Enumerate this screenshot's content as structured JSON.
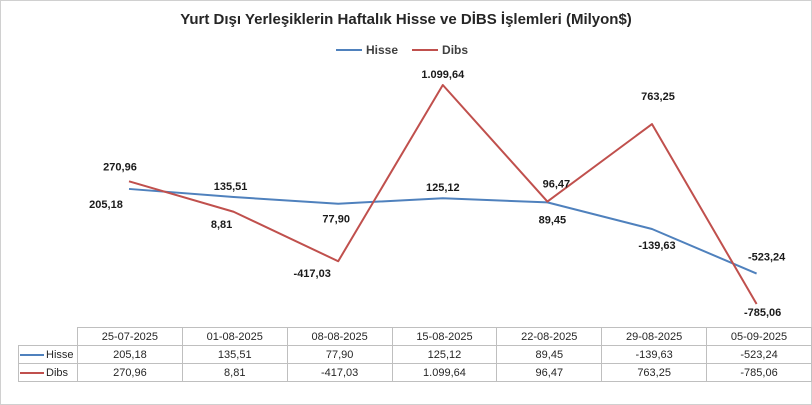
{
  "chart_data": {
    "type": "line",
    "title": "Yurt Dışı Yerleşiklerin Haftalık Hisse ve DİBS İşlemleri (Milyon$)",
    "categories": [
      "25-07-2025",
      "01-08-2025",
      "08-08-2025",
      "15-08-2025",
      "22-08-2025",
      "29-08-2025",
      "05-09-2025"
    ],
    "series": [
      {
        "name": "Hisse",
        "color": "#4f81bd",
        "values": [
          205.18,
          135.51,
          77.9,
          125.12,
          89.45,
          -139.63,
          -523.24
        ],
        "labels": [
          "205,18",
          "135,51",
          "77,90",
          "125,12",
          "89,45",
          "-139,63",
          "-523,24"
        ]
      },
      {
        "name": "Dibs",
        "color": "#c0504d",
        "values": [
          270.96,
          8.81,
          -417.03,
          1099.64,
          96.47,
          763.25,
          -785.06
        ],
        "labels": [
          "270,96",
          "8,81",
          "-417,03",
          "1.099,64",
          "96,47",
          "763,25",
          "-785,06"
        ]
      }
    ],
    "legend_position": "top",
    "grid": false,
    "data_table": true
  }
}
